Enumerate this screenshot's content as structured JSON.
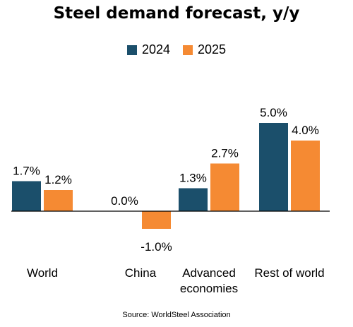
{
  "chart_data": {
    "type": "bar",
    "title": "Steel demand forecast, y/y",
    "categories": [
      "World",
      "China",
      "Advanced economies",
      "Rest of world"
    ],
    "category_lines": [
      [
        "World"
      ],
      [
        "China"
      ],
      [
        "Advanced",
        "economies"
      ],
      [
        "Rest of world"
      ]
    ],
    "series": [
      {
        "name": "2024",
        "color": "#1b4f6b",
        "values": [
          1.7,
          0.0,
          1.3,
          5.0
        ],
        "labels": [
          "1.7%",
          "0.0%",
          "1.3%",
          "5.0%"
        ]
      },
      {
        "name": "2025",
        "color": "#f58a33",
        "values": [
          1.2,
          -1.0,
          2.7,
          4.0
        ],
        "labels": [
          "1.2%",
          "-1.0%",
          "2.7%",
          "4.0%"
        ]
      }
    ],
    "ylim": [
      -1.5,
      5.5
    ],
    "grid": false,
    "legend": "top-center",
    "source": "Source: WorldSteel Association"
  }
}
